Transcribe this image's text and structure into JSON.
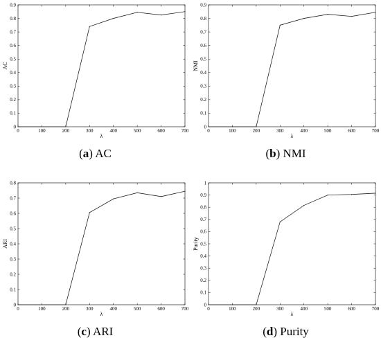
{
  "chart_data": [
    {
      "type": "line",
      "caption_letter": "a",
      "caption_text": "AC",
      "xlabel": "λ",
      "ylabel": "AC",
      "x": [
        0,
        100,
        200,
        300,
        400,
        500,
        600,
        700
      ],
      "values": [
        0,
        0,
        0,
        0.74,
        0.8,
        0.845,
        0.825,
        0.85
      ],
      "xlim": [
        0,
        700
      ],
      "ylim": [
        0,
        0.9
      ],
      "xticks": [
        "0",
        "100",
        "200",
        "300",
        "400",
        "500",
        "600",
        "700"
      ],
      "yticks": [
        "0",
        "0.1",
        "0.2",
        "0.3",
        "0.4",
        "0.5",
        "0.6",
        "0.7",
        "0.8",
        "0.9"
      ],
      "grid": false
    },
    {
      "type": "line",
      "caption_letter": "b",
      "caption_text": "NMI",
      "xlabel": "λ",
      "ylabel": "NMI",
      "x": [
        0,
        100,
        200,
        300,
        400,
        500,
        600,
        700
      ],
      "values": [
        0,
        0,
        0,
        0.75,
        0.8,
        0.83,
        0.815,
        0.845
      ],
      "xlim": [
        0,
        700
      ],
      "ylim": [
        0,
        0.9
      ],
      "xticks": [
        "0",
        "100",
        "200",
        "300",
        "400",
        "500",
        "600",
        "700"
      ],
      "yticks": [
        "0",
        "0.1",
        "0.2",
        "0.3",
        "0.4",
        "0.5",
        "0.6",
        "0.7",
        "0.8",
        "0.9"
      ],
      "grid": false
    },
    {
      "type": "line",
      "caption_letter": "c",
      "caption_text": "ARI",
      "xlabel": "λ",
      "ylabel": "ARI",
      "x": [
        0,
        100,
        200,
        300,
        400,
        500,
        600,
        700
      ],
      "values": [
        0,
        0,
        0,
        0.605,
        0.695,
        0.735,
        0.71,
        0.745
      ],
      "xlim": [
        0,
        700
      ],
      "ylim": [
        0,
        0.8
      ],
      "xticks": [
        "0",
        "100",
        "200",
        "300",
        "400",
        "500",
        "600",
        "700"
      ],
      "yticks": [
        "0",
        "0.1",
        "0.2",
        "0.3",
        "0.4",
        "0.5",
        "0.6",
        "0.7",
        "0.8"
      ],
      "grid": false
    },
    {
      "type": "line",
      "caption_letter": "d",
      "caption_text": "Purity",
      "xlabel": "λ",
      "ylabel": "Purity",
      "x": [
        0,
        100,
        200,
        300,
        400,
        500,
        600,
        700
      ],
      "values": [
        0,
        0,
        0,
        0.68,
        0.815,
        0.9,
        0.905,
        0.915
      ],
      "xlim": [
        0,
        700
      ],
      "ylim": [
        0,
        1
      ],
      "xticks": [
        "0",
        "100",
        "200",
        "300",
        "400",
        "500",
        "600",
        "700"
      ],
      "yticks": [
        "0",
        "0.1",
        "0.2",
        "0.3",
        "0.4",
        "0.5",
        "0.6",
        "0.7",
        "0.8",
        "0.9",
        "1"
      ],
      "grid": false
    }
  ]
}
